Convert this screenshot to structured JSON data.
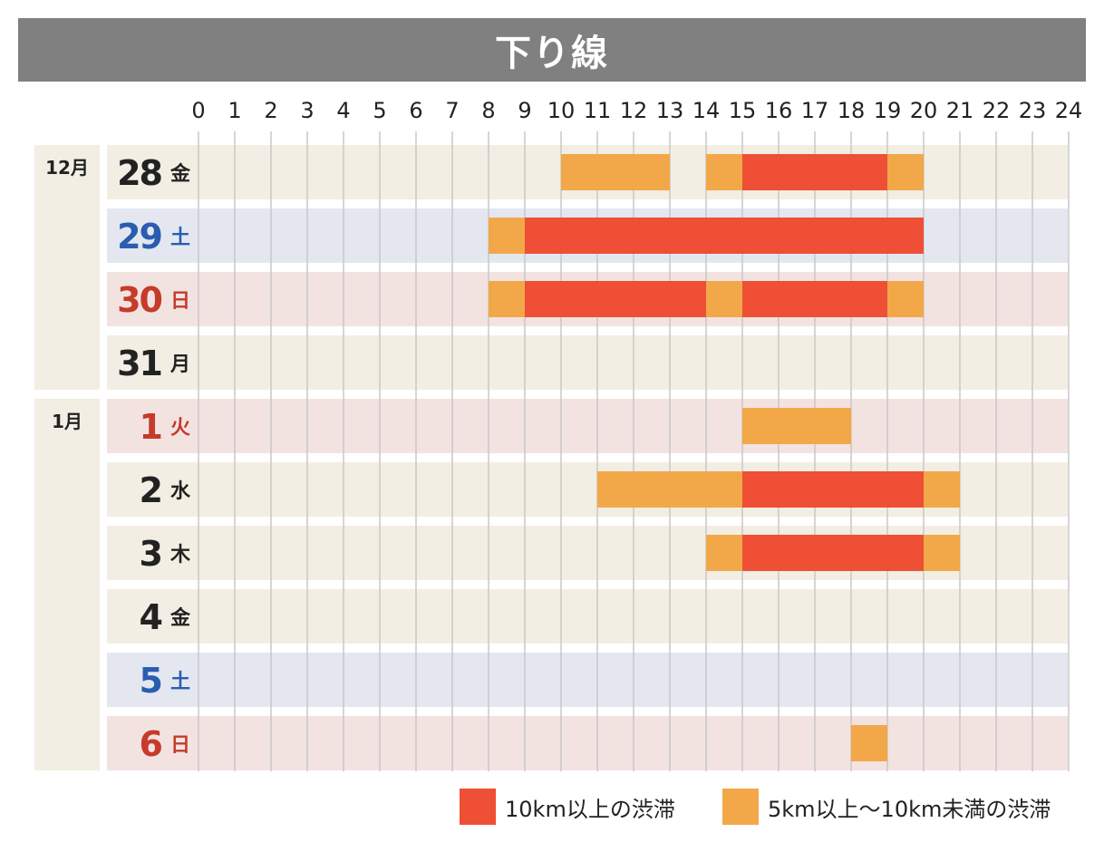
{
  "title": "下り線",
  "colors": {
    "major": "#ee4f35",
    "minor": "#f2a849",
    "row_weekday": "#f2eee3",
    "row_saturday": "#e4e7f0",
    "row_holiday": "#f2e3e1",
    "month_cell": "#f2eee3",
    "day_black": "#222222",
    "day_blue": "#2a5db0",
    "day_red": "#c63b2a",
    "gridline": "#c8c8c8"
  },
  "legend": [
    {
      "label": "10km以上の渋滞",
      "color": "#ee4f35"
    },
    {
      "label": "5km以上〜10km未満の渋滞",
      "color": "#f2a849"
    }
  ],
  "chart_data": {
    "type": "gantt",
    "x_axis": {
      "min": 0,
      "max": 24,
      "ticks": [
        "0",
        "1",
        "2",
        "3",
        "4",
        "5",
        "6",
        "7",
        "8",
        "9",
        "10",
        "11",
        "12",
        "13",
        "14",
        "15",
        "16",
        "17",
        "18",
        "19",
        "20",
        "21",
        "22",
        "23",
        "24"
      ],
      "unit": "hour"
    },
    "months": [
      {
        "label": "12月",
        "row_count": 4
      },
      {
        "label": "1月",
        "row_count": 6
      }
    ],
    "rows": [
      {
        "day": "28",
        "weekday": "金",
        "style": "weekday",
        "color": "day_black",
        "segments": [
          {
            "start": 10,
            "end": 13,
            "level": "minor"
          },
          {
            "start": 14,
            "end": 15,
            "level": "minor"
          },
          {
            "start": 15,
            "end": 19,
            "level": "major"
          },
          {
            "start": 19,
            "end": 20,
            "level": "minor"
          }
        ]
      },
      {
        "day": "29",
        "weekday": "土",
        "style": "saturday",
        "color": "day_blue",
        "segments": [
          {
            "start": 8,
            "end": 9,
            "level": "minor"
          },
          {
            "start": 9,
            "end": 20,
            "level": "major"
          }
        ]
      },
      {
        "day": "30",
        "weekday": "日",
        "style": "holiday",
        "color": "day_red",
        "segments": [
          {
            "start": 8,
            "end": 9,
            "level": "minor"
          },
          {
            "start": 9,
            "end": 14,
            "level": "major"
          },
          {
            "start": 14,
            "end": 15,
            "level": "minor"
          },
          {
            "start": 15,
            "end": 19,
            "level": "major"
          },
          {
            "start": 19,
            "end": 20,
            "level": "minor"
          }
        ]
      },
      {
        "day": "31",
        "weekday": "月",
        "style": "weekday",
        "color": "day_black",
        "segments": []
      },
      {
        "day": "1",
        "weekday": "火",
        "style": "holiday",
        "color": "day_red",
        "segments": [
          {
            "start": 15,
            "end": 18,
            "level": "minor"
          }
        ]
      },
      {
        "day": "2",
        "weekday": "水",
        "style": "weekday",
        "color": "day_black",
        "segments": [
          {
            "start": 11,
            "end": 15,
            "level": "minor"
          },
          {
            "start": 15,
            "end": 20,
            "level": "major"
          },
          {
            "start": 20,
            "end": 21,
            "level": "minor"
          }
        ]
      },
      {
        "day": "3",
        "weekday": "木",
        "style": "weekday",
        "color": "day_black",
        "segments": [
          {
            "start": 14,
            "end": 15,
            "level": "minor"
          },
          {
            "start": 15,
            "end": 20,
            "level": "major"
          },
          {
            "start": 20,
            "end": 21,
            "level": "minor"
          }
        ]
      },
      {
        "day": "4",
        "weekday": "金",
        "style": "weekday",
        "color": "day_black",
        "segments": []
      },
      {
        "day": "5",
        "weekday": "土",
        "style": "saturday",
        "color": "day_blue",
        "segments": []
      },
      {
        "day": "6",
        "weekday": "日",
        "style": "holiday",
        "color": "day_red",
        "segments": [
          {
            "start": 18,
            "end": 19,
            "level": "minor"
          }
        ]
      }
    ]
  }
}
